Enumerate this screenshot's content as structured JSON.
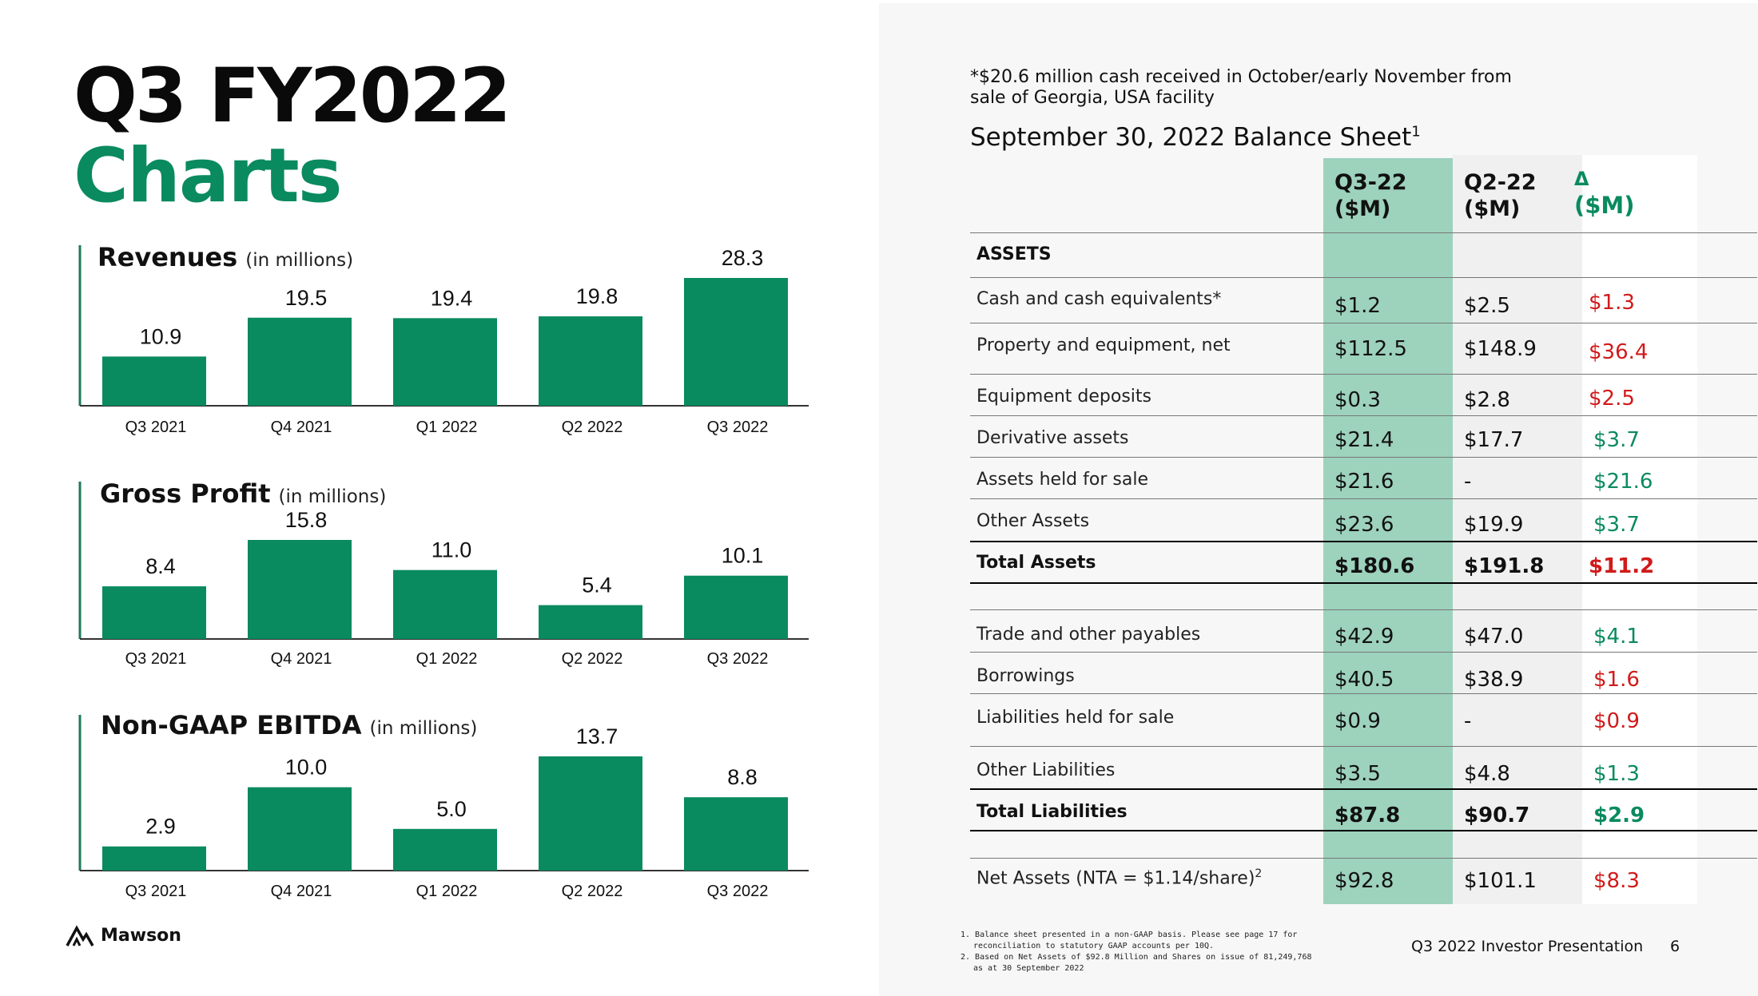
{
  "page": {
    "title_line1": "Q3 FY2022",
    "title_line2": "Charts",
    "brand": "Mawson",
    "footer": "Q3 2022 Investor Presentation",
    "page_number": "6",
    "accent_color": "#0a8a5f"
  },
  "chart_data": [
    {
      "type": "bar",
      "title": "Revenues",
      "subtitle": "(in millions)",
      "categories": [
        "Q3 2021",
        "Q4 2021",
        "Q1 2022",
        "Q2 2022",
        "Q3 2022"
      ],
      "values": [
        10.9,
        19.5,
        19.4,
        19.8,
        28.3
      ],
      "labels": [
        "10.9",
        "19.5",
        "19.4",
        "19.8",
        "28.3"
      ],
      "ylim": [
        0,
        28.3
      ],
      "grid": false
    },
    {
      "type": "bar",
      "title": "Gross Profit",
      "subtitle": "(in millions)",
      "categories": [
        "Q3 2021",
        "Q4 2021",
        "Q1 2022",
        "Q2 2022",
        "Q3 2022"
      ],
      "values": [
        8.4,
        15.8,
        11.0,
        5.4,
        10.1
      ],
      "labels": [
        "8.4",
        "15.8",
        "11.0",
        "5.4",
        "10.1"
      ],
      "ylim": [
        0,
        15.8
      ],
      "grid": false
    },
    {
      "type": "bar",
      "title": "Non-GAAP EBITDA",
      "subtitle": "(in millions)",
      "categories": [
        "Q3 2021",
        "Q4 2021",
        "Q1 2022",
        "Q2 2022",
        "Q3 2022"
      ],
      "values": [
        2.9,
        10.0,
        5.0,
        13.7,
        8.8
      ],
      "labels": [
        "2.9",
        "10.0",
        "5.0",
        "13.7",
        "8.8"
      ],
      "ylim": [
        0,
        13.7
      ],
      "grid": false
    }
  ],
  "balance_sheet": {
    "note": "*$20.6 million cash received in October/early November from sale of Georgia, USA facility",
    "title": "September 30, 2022 Balance Sheet",
    "title_sup": "1",
    "headers": {
      "q3_line1": "Q3-22",
      "q3_line2": "($M)",
      "q2_line1": "Q2-22",
      "q2_line2": "($M)",
      "d_line1": "Δ",
      "d_line2": "($M)"
    },
    "section_assets": "ASSETS",
    "rows": [
      {
        "label": "Cash and cash equivalents*",
        "q3": "$1.2",
        "q2": "$2.5",
        "delta": "$1.3"
      },
      {
        "label": "Property and equipment, net",
        "q3": "$112.5",
        "q2": "$148.9",
        "delta": "$36.4"
      },
      {
        "label": "Equipment deposits",
        "q3": "$0.3",
        "q2": "$2.8",
        "delta": "$2.5"
      },
      {
        "label": "Derivative assets",
        "q3": "$21.4",
        "q2": "$17.7",
        "delta": "$3.7"
      },
      {
        "label": "Assets held for sale",
        "q3": "$21.6",
        "q2": "-",
        "delta": "$21.6"
      },
      {
        "label": "Other Assets",
        "q3": "$23.6",
        "q2": "$19.9",
        "delta": "$3.7"
      },
      {
        "label": "Total Assets",
        "q3": "$180.6",
        "q2": "$191.8",
        "delta": "$11.2"
      },
      {
        "label": "Trade and other payables",
        "q3": "$42.9",
        "q2": "$47.0",
        "delta": "$4.1"
      },
      {
        "label": "Borrowings",
        "q3": "$40.5",
        "q2": "$38.9",
        "delta": "$1.6"
      },
      {
        "label": "Liabilities held for sale",
        "q3": "$0.9",
        "q2": "-",
        "delta": "$0.9"
      },
      {
        "label": "Other Liabilities",
        "q3": "$3.5",
        "q2": "$4.8",
        "delta": "$1.3"
      },
      {
        "label": "Total Liabilities",
        "q3": "$87.8",
        "q2": "$90.7",
        "delta": "$2.9"
      },
      {
        "label": "Net Assets (NTA = $1.14/share)",
        "label_sup": "2",
        "q3": "$92.8",
        "q2": "$101.1",
        "delta": "$8.3"
      }
    ],
    "colors": {
      "negative": "#d11a1a",
      "positive": "#0a8a5f",
      "q3_column": "#9dd2bd"
    }
  },
  "footnotes": [
    "1. Balance sheet presented in a non-GAAP basis. Please see page 17 for reconciliation to statutory GAAP accounts per 10Q.",
    "2. Based on Net Assets of $92.8 Million and Shares on issue of 81,249,768 as at 30 September 2022"
  ]
}
